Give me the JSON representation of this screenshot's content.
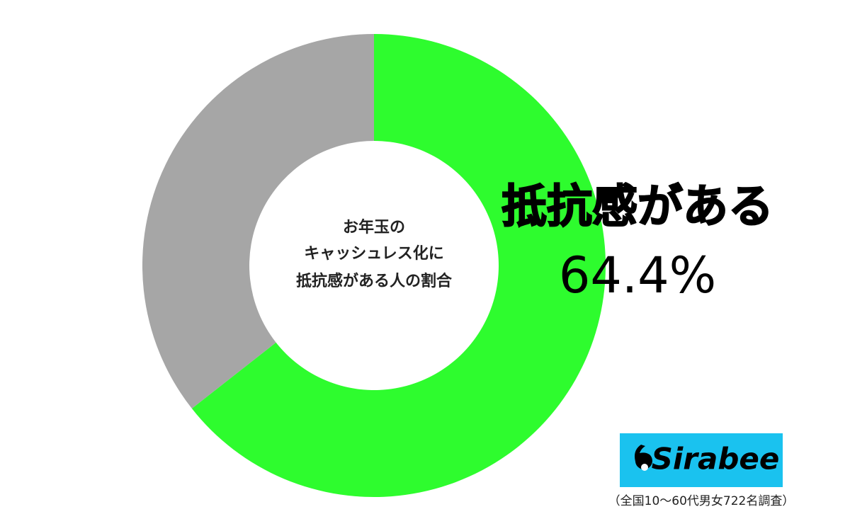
{
  "chart_data": {
    "type": "donut",
    "categories": [
      "抵抗感がある",
      null
    ],
    "values": [
      64.4,
      35.6
    ],
    "value_labels": [
      "64.4%",
      null
    ],
    "colors": [
      "#2efc2e",
      "#a6a6a6"
    ],
    "center_text": [
      "お年玉の",
      "キャッシュレス化に",
      "抵抗感がある人の割合"
    ],
    "logo": "Sirabee",
    "note": "（全国10〜60代男女722名調査）"
  }
}
